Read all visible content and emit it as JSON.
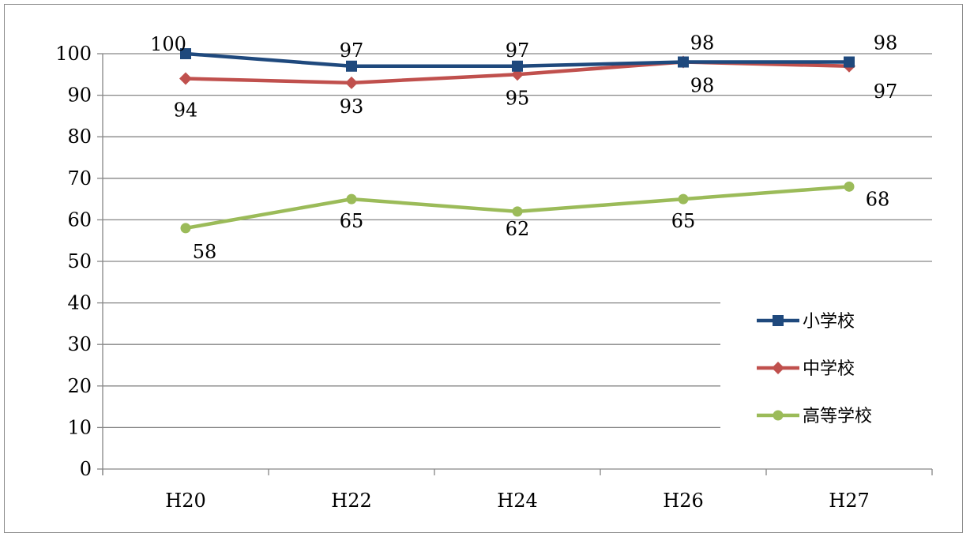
{
  "chart_data": {
    "type": "line",
    "categories": [
      "H20",
      "H22",
      "H24",
      "H26",
      "H27"
    ],
    "ylim": [
      0,
      100
    ],
    "yticks": [
      0,
      10,
      20,
      30,
      40,
      50,
      60,
      70,
      80,
      90,
      100
    ],
    "grid": true,
    "legend": "right",
    "series": [
      {
        "name": "小学校",
        "values": [
          100,
          97,
          97,
          98,
          98
        ],
        "color": "#1f497d",
        "marker": "square"
      },
      {
        "name": "中学校",
        "values": [
          94,
          93,
          95,
          98,
          97
        ],
        "color": "#c0504d",
        "marker": "diamond"
      },
      {
        "name": "高等学校",
        "values": [
          58,
          65,
          62,
          65,
          68
        ],
        "color": "#9bbb59",
        "marker": "circle"
      }
    ]
  }
}
